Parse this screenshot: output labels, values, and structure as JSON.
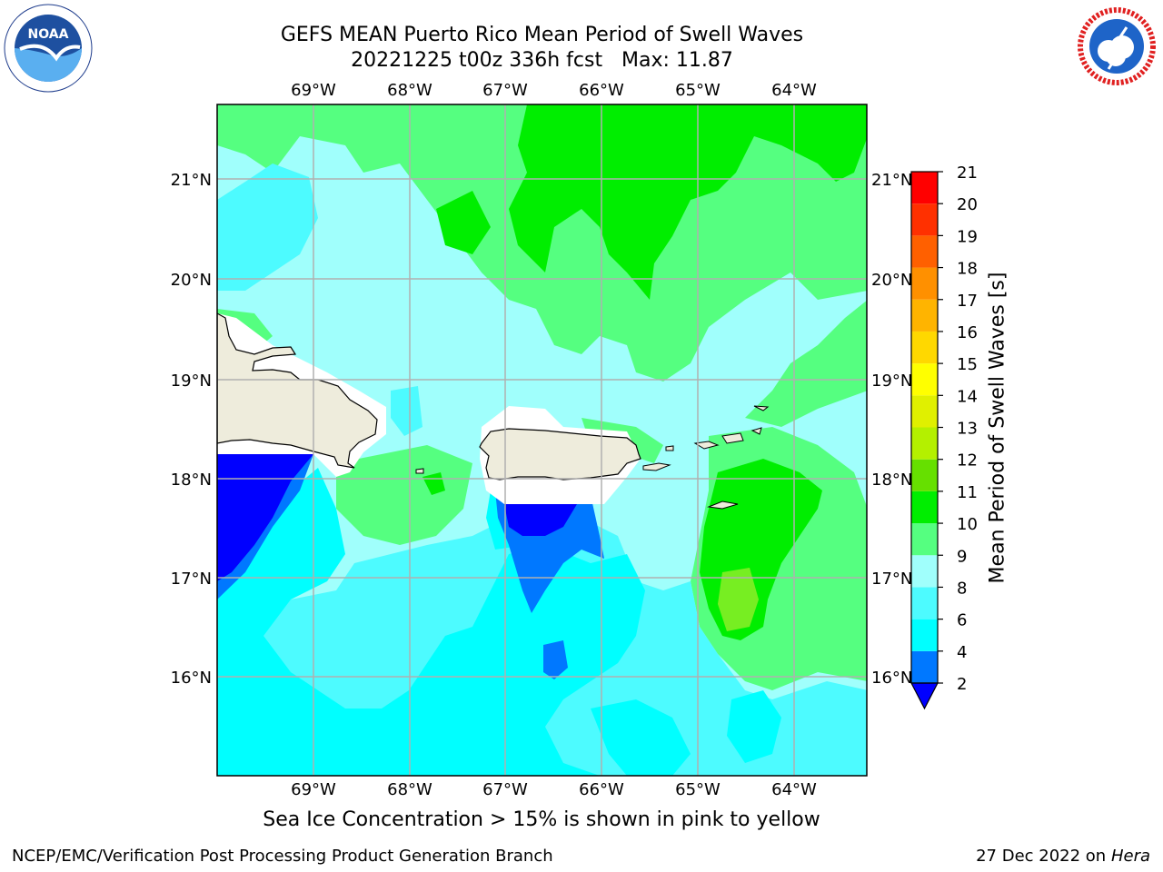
{
  "header": {
    "title_line1": "GEFS MEAN Puerto Rico Mean Period of Swell Waves",
    "title_line2": "20221225 t00z 336h fcst   Max: 11.87"
  },
  "map": {
    "lon_labels": [
      "69°W",
      "68°W",
      "67°W",
      "66°W",
      "65°W",
      "64°W"
    ],
    "lat_labels": [
      "21°N",
      "20°N",
      "19°N",
      "18°N",
      "17°N",
      "16°N"
    ],
    "colors": {
      "land": "#eeecdc",
      "grid": "#b0b0b0",
      "c2_4": "#0000ff",
      "c4_6": "#0078ff",
      "c6_8": "#00ffff",
      "c8_9": "#4dfbff",
      "c9_10": "#a0fffc",
      "c10_11": "#55ff80",
      "c11_12": "#00ee00"
    }
  },
  "colorbar": {
    "label": "Mean Period of Swell Waves [s]",
    "ticks": [
      "2",
      "4",
      "6",
      "8",
      "9",
      "10",
      "11",
      "12",
      "13",
      "14",
      "15",
      "16",
      "17",
      "18",
      "19",
      "20",
      "21"
    ],
    "colors": [
      "#0000ff",
      "#0078ff",
      "#00ffff",
      "#4dfbff",
      "#a0fffc",
      "#55ff80",
      "#00ee00",
      "#66e000",
      "#b4f000",
      "#e0f000",
      "#ffff00",
      "#ffd800",
      "#ffb400",
      "#ff9000",
      "#ff6000",
      "#ff3000",
      "#ff0000"
    ]
  },
  "footer": {
    "note": "Sea Ice Concentration > 15% is shown in pink to yellow",
    "credit": "NCEP/EMC/Verification Post Processing Product Generation Branch",
    "date": "27 Dec 2022 on",
    "host": "Hera"
  },
  "logos": {
    "noaa_text": "NOAA",
    "nws_text": "NATIONAL WEATHER SERVICE"
  }
}
